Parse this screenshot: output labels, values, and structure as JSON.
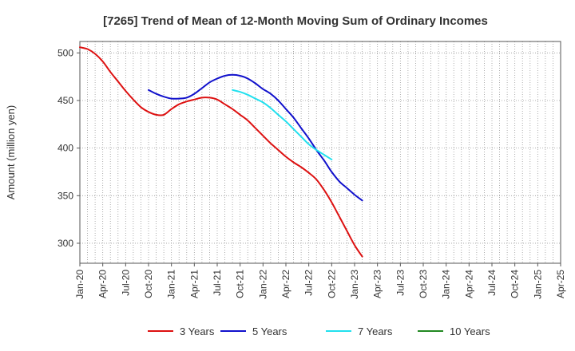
{
  "chart_data": {
    "type": "line",
    "title": "[7265]  Trend of Mean of 12-Month Moving Sum of Ordinary Incomes",
    "xlabel": "",
    "ylabel": "Amount (million yen)",
    "ylim": [
      279,
      512
    ],
    "yticks": [
      300,
      350,
      400,
      450,
      500
    ],
    "x_tick_labels": [
      "Jan-20",
      "Apr-20",
      "Jul-20",
      "Oct-20",
      "Jan-21",
      "Apr-21",
      "Jul-21",
      "Oct-21",
      "Jan-22",
      "Apr-22",
      "Jul-22",
      "Oct-22",
      "Jan-23",
      "Apr-23",
      "Jul-23",
      "Oct-23",
      "Jan-24",
      "Apr-24",
      "Jul-24",
      "Oct-24",
      "Jan-25",
      "Apr-25"
    ],
    "grid": true,
    "legend_position": "bottom",
    "series": [
      {
        "name": "3 Years",
        "color": "#dd1111",
        "points": [
          [
            0,
            506
          ],
          [
            1,
            504
          ],
          [
            2,
            499
          ],
          [
            3,
            491
          ],
          [
            4,
            480
          ],
          [
            5,
            470
          ],
          [
            6,
            460
          ],
          [
            7,
            451
          ],
          [
            8,
            443
          ],
          [
            9,
            438
          ],
          [
            10,
            435
          ],
          [
            11,
            435
          ],
          [
            12,
            441
          ],
          [
            13,
            446
          ],
          [
            14,
            449
          ],
          [
            15,
            451
          ],
          [
            16,
            453
          ],
          [
            17,
            453
          ],
          [
            18,
            451
          ],
          [
            19,
            446
          ],
          [
            20,
            441
          ],
          [
            21,
            435
          ],
          [
            22,
            429
          ],
          [
            23,
            421
          ],
          [
            24,
            413
          ],
          [
            25,
            405
          ],
          [
            26,
            398
          ],
          [
            27,
            391
          ],
          [
            28,
            385
          ],
          [
            29,
            380
          ],
          [
            30,
            374
          ],
          [
            31,
            367
          ],
          [
            32,
            356
          ],
          [
            33,
            343
          ],
          [
            34,
            328
          ],
          [
            35,
            313
          ],
          [
            36,
            298
          ],
          [
            37,
            286
          ]
        ]
      },
      {
        "name": "5 Years",
        "color": "#1111cc",
        "points": [
          [
            9,
            461
          ],
          [
            10,
            457
          ],
          [
            11,
            454
          ],
          [
            12,
            452
          ],
          [
            13,
            452
          ],
          [
            14,
            453
          ],
          [
            15,
            457
          ],
          [
            16,
            463
          ],
          [
            17,
            469
          ],
          [
            18,
            473
          ],
          [
            19,
            476
          ],
          [
            20,
            477
          ],
          [
            21,
            476
          ],
          [
            22,
            473
          ],
          [
            23,
            468
          ],
          [
            24,
            462
          ],
          [
            25,
            457
          ],
          [
            26,
            450
          ],
          [
            27,
            441
          ],
          [
            28,
            432
          ],
          [
            29,
            421
          ],
          [
            30,
            410
          ],
          [
            31,
            398
          ],
          [
            32,
            387
          ],
          [
            33,
            375
          ],
          [
            34,
            365
          ],
          [
            35,
            358
          ],
          [
            36,
            351
          ],
          [
            37,
            345
          ]
        ]
      },
      {
        "name": "7 Years",
        "color": "#22e0ee",
        "points": [
          [
            20,
            461
          ],
          [
            21,
            459
          ],
          [
            22,
            456
          ],
          [
            23,
            452
          ],
          [
            24,
            448
          ],
          [
            25,
            442
          ],
          [
            26,
            435
          ],
          [
            27,
            428
          ],
          [
            28,
            420
          ],
          [
            29,
            412
          ],
          [
            30,
            404
          ],
          [
            31,
            398
          ],
          [
            32,
            393
          ],
          [
            33,
            388
          ]
        ]
      },
      {
        "name": "10 Years",
        "color": "#228822",
        "points": []
      }
    ]
  }
}
